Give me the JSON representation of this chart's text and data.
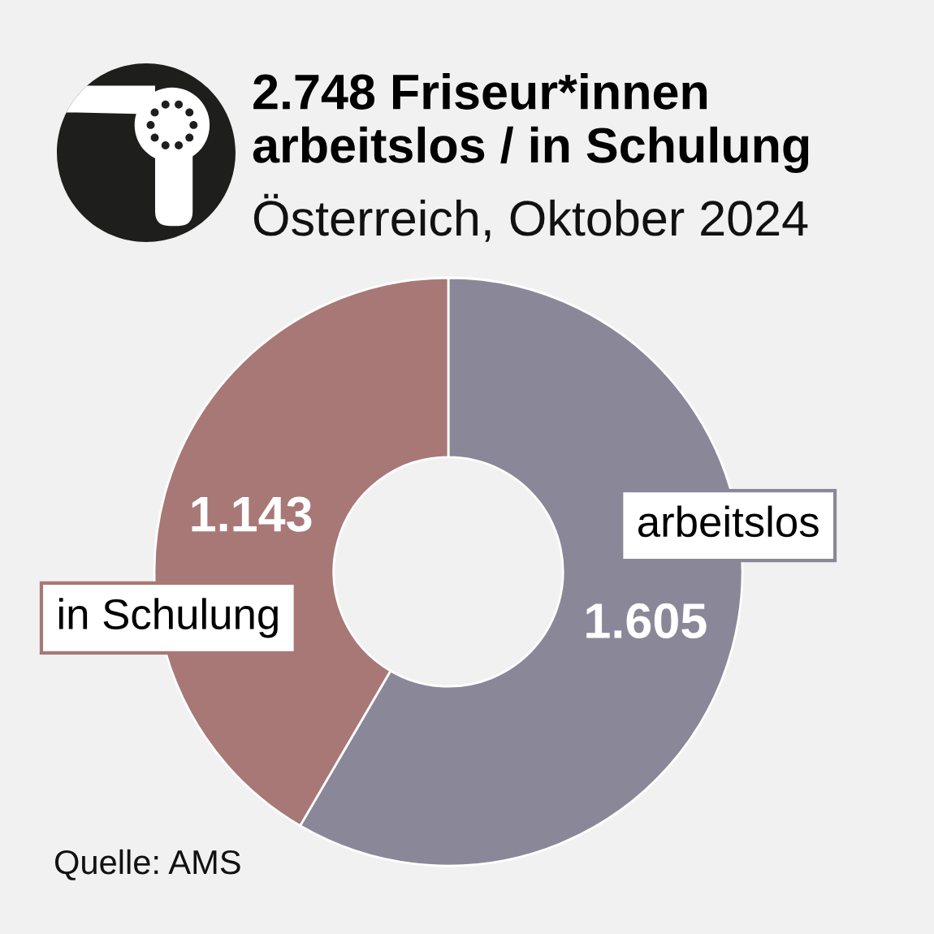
{
  "chart_data": {
    "type": "donut",
    "title": "2.748 Friseur*innen\narbeitslos / in Schulung",
    "subtitle": "Österreich, Oktober 2024",
    "categories": [
      "arbeitslos",
      "in Schulung"
    ],
    "values": [
      1605,
      1143
    ],
    "value_labels": [
      "1.605",
      "1.143"
    ],
    "colors": [
      "#8a8898",
      "#a87876"
    ],
    "annotations": [
      "Quelle: AMS"
    ]
  }
}
